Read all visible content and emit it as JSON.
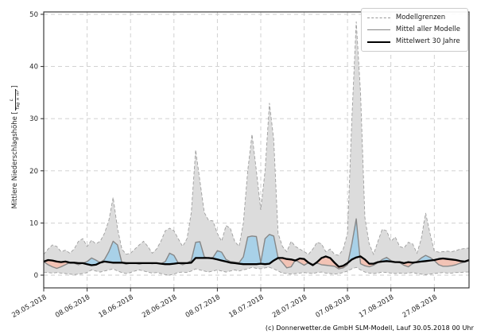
{
  "figure": {
    "caption": "(c) Donnerwetter.de GmbH SLM-Modell, Lauf 30.05.2018 00 Uhr"
  },
  "ylabel_display": {
    "prefix": "Mittlere Niederschlagshöhe [",
    "frac_num": "L",
    "frac_den": "Tag × m²",
    "suffix": "]"
  },
  "legend": {
    "items": [
      {
        "label": "Modellgrenzen",
        "style": "dashed-gray"
      },
      {
        "label": "Mittel aller Modelle",
        "style": "solid-gray"
      },
      {
        "label": "Mittelwert 30 Jahre",
        "style": "solid-black-thick"
      }
    ]
  },
  "chart_data": {
    "type": "line",
    "title": "",
    "xlabel": "",
    "ylabel": "Mittlere Niederschlagshöhe [L/(Tag·m²)]",
    "grid": true,
    "legend_position": "top-right",
    "ylim": [
      -2.4,
      50.5
    ],
    "y_ticks": [
      0,
      10,
      20,
      30,
      40,
      50
    ],
    "x_start_date": "29.05.2018",
    "x_tick_labels": [
      "29.05.2018",
      "08.06.2018",
      "18.06.2018",
      "28.06.2018",
      "08.07.2018",
      "18.07.2018",
      "28.07.2018",
      "07.08.2018",
      "17.08.2018",
      "27.08.2018"
    ],
    "x_tick_days": [
      0,
      10,
      20,
      30,
      40,
      50,
      60,
      70,
      80,
      90
    ],
    "x_days_total": 99,
    "fills": {
      "band_color": "#dcdcdc",
      "above_color": "#a8d1e8",
      "below_color": "#f2c3b5"
    },
    "series": [
      {
        "name": "Modellgrenzen (obere Grenze)",
        "style": "dashed",
        "color": "#9e9e9e",
        "width": 0.9,
        "values": [
          4.0,
          5.0,
          5.8,
          5.5,
          4.5,
          4.8,
          4.2,
          5.0,
          6.5,
          7.0,
          5.5,
          6.7,
          6.0,
          6.5,
          8.0,
          10.5,
          14.9,
          9.0,
          5.0,
          4.0,
          4.2,
          5.0,
          5.8,
          6.5,
          5.5,
          4.2,
          5.0,
          6.5,
          8.5,
          9.0,
          8.5,
          7.0,
          5.5,
          7.0,
          12.0,
          24.0,
          18.0,
          12.0,
          10.5,
          10.4,
          8.0,
          6.5,
          9.5,
          9.0,
          6.5,
          5.5,
          10.0,
          20.0,
          27.0,
          20.0,
          12.5,
          20.0,
          33.0,
          26.0,
          8.0,
          5.5,
          4.5,
          6.5,
          5.5,
          5.0,
          4.5,
          4.0,
          5.0,
          6.3,
          6.0,
          4.5,
          5.0,
          4.0,
          3.8,
          5.0,
          8.0,
          30.0,
          48.6,
          35.0,
          11.0,
          6.0,
          4.0,
          6.5,
          8.8,
          8.5,
          6.5,
          7.3,
          5.5,
          5.2,
          6.3,
          6.0,
          4.2,
          7.0,
          11.9,
          8.0,
          4.6,
          4.4,
          4.5,
          4.6,
          4.5,
          4.7,
          5.0,
          5.1,
          5.2
        ]
      },
      {
        "name": "Modellgrenzen (untere Grenze)",
        "style": "dashed",
        "color": "#9e9e9e",
        "width": 0.9,
        "values": [
          0.5,
          0.5,
          0.4,
          0.5,
          0.4,
          0.3,
          0.2,
          0.1,
          0.2,
          0.3,
          0.5,
          1.0,
          0.8,
          0.6,
          0.8,
          1.0,
          1.2,
          0.8,
          0.5,
          0.3,
          0.5,
          0.8,
          1.0,
          0.8,
          0.6,
          0.4,
          0.5,
          0.3,
          0.1,
          0.0,
          0.2,
          0.5,
          0.6,
          0.5,
          0.8,
          1.2,
          1.0,
          0.8,
          0.6,
          0.8,
          1.0,
          0.8,
          0.6,
          0.8,
          1.0,
          0.8,
          1.0,
          1.2,
          1.5,
          1.3,
          1.2,
          1.4,
          1.5,
          1.2,
          0.8,
          0.4,
          0.3,
          0.2,
          0.3,
          0.4,
          0.5,
          0.4,
          0.3,
          0.5,
          0.6,
          0.4,
          0.3,
          0.2,
          0.3,
          0.5,
          0.8,
          1.2,
          1.5,
          1.0,
          0.6,
          0.4,
          0.3,
          0.4,
          0.6,
          0.5,
          0.4,
          0.3,
          0.4,
          0.3,
          0.4,
          0.5,
          0.3,
          0.2,
          0.1,
          0.2,
          0.3,
          0.4,
          0.5,
          0.4,
          0.4,
          0.5,
          0.5,
          0.6,
          0.6
        ]
      },
      {
        "name": "Mittel aller Modelle",
        "style": "solid",
        "color": "#878787",
        "width": 1.4,
        "values": [
          2.6,
          2.0,
          1.6,
          1.3,
          1.6,
          2.0,
          2.4,
          2.3,
          2.0,
          2.3,
          2.6,
          3.3,
          2.9,
          2.4,
          3.0,
          4.5,
          6.5,
          5.8,
          2.4,
          2.1,
          2.3,
          2.3,
          2.1,
          2.3,
          2.3,
          2.2,
          2.3,
          2.2,
          2.6,
          4.2,
          3.8,
          2.3,
          2.0,
          2.3,
          2.8,
          6.3,
          6.4,
          3.5,
          3.2,
          3.4,
          4.7,
          4.4,
          3.0,
          2.6,
          2.5,
          2.4,
          3.5,
          7.3,
          7.5,
          7.4,
          2.4,
          7.0,
          7.8,
          7.5,
          3.3,
          2.4,
          1.4,
          1.6,
          2.9,
          2.4,
          1.9,
          2.4,
          2.1,
          2.3,
          2.0,
          1.9,
          1.8,
          1.7,
          1.2,
          1.4,
          2.0,
          6.0,
          10.8,
          2.2,
          1.8,
          1.6,
          1.9,
          2.4,
          3.0,
          3.4,
          2.8,
          2.5,
          2.4,
          1.9,
          1.6,
          2.2,
          2.6,
          3.3,
          3.8,
          3.4,
          2.8,
          2.0,
          1.7,
          1.7,
          1.8,
          2.0,
          2.3,
          2.5,
          2.8
        ]
      },
      {
        "name": "Mittelwert 30 Jahre",
        "style": "solid",
        "color": "#000000",
        "width": 2.3,
        "values": [
          2.6,
          2.9,
          2.8,
          2.6,
          2.5,
          2.6,
          2.4,
          2.4,
          2.3,
          2.3,
          2.1,
          1.9,
          2.0,
          2.4,
          2.6,
          2.5,
          2.4,
          2.4,
          2.4,
          2.3,
          2.3,
          2.3,
          2.3,
          2.3,
          2.3,
          2.3,
          2.3,
          2.2,
          2.1,
          2.1,
          2.2,
          2.3,
          2.3,
          2.3,
          2.4,
          3.3,
          3.3,
          3.3,
          3.3,
          3.2,
          3.0,
          2.8,
          2.6,
          2.4,
          2.3,
          2.2,
          2.1,
          2.1,
          2.1,
          2.1,
          2.2,
          2.1,
          2.2,
          2.8,
          3.3,
          3.3,
          3.1,
          3.0,
          2.8,
          3.2,
          3.1,
          2.4,
          1.9,
          2.5,
          3.3,
          3.6,
          3.3,
          2.4,
          1.6,
          1.8,
          2.3,
          3.0,
          3.4,
          3.6,
          3.0,
          2.2,
          2.2,
          2.5,
          2.6,
          2.7,
          2.6,
          2.5,
          2.5,
          2.3,
          2.5,
          2.4,
          2.5,
          2.6,
          2.7,
          2.8,
          2.9,
          3.1,
          3.2,
          3.1,
          3.0,
          2.9,
          2.7,
          2.6,
          2.9
        ]
      }
    ]
  }
}
